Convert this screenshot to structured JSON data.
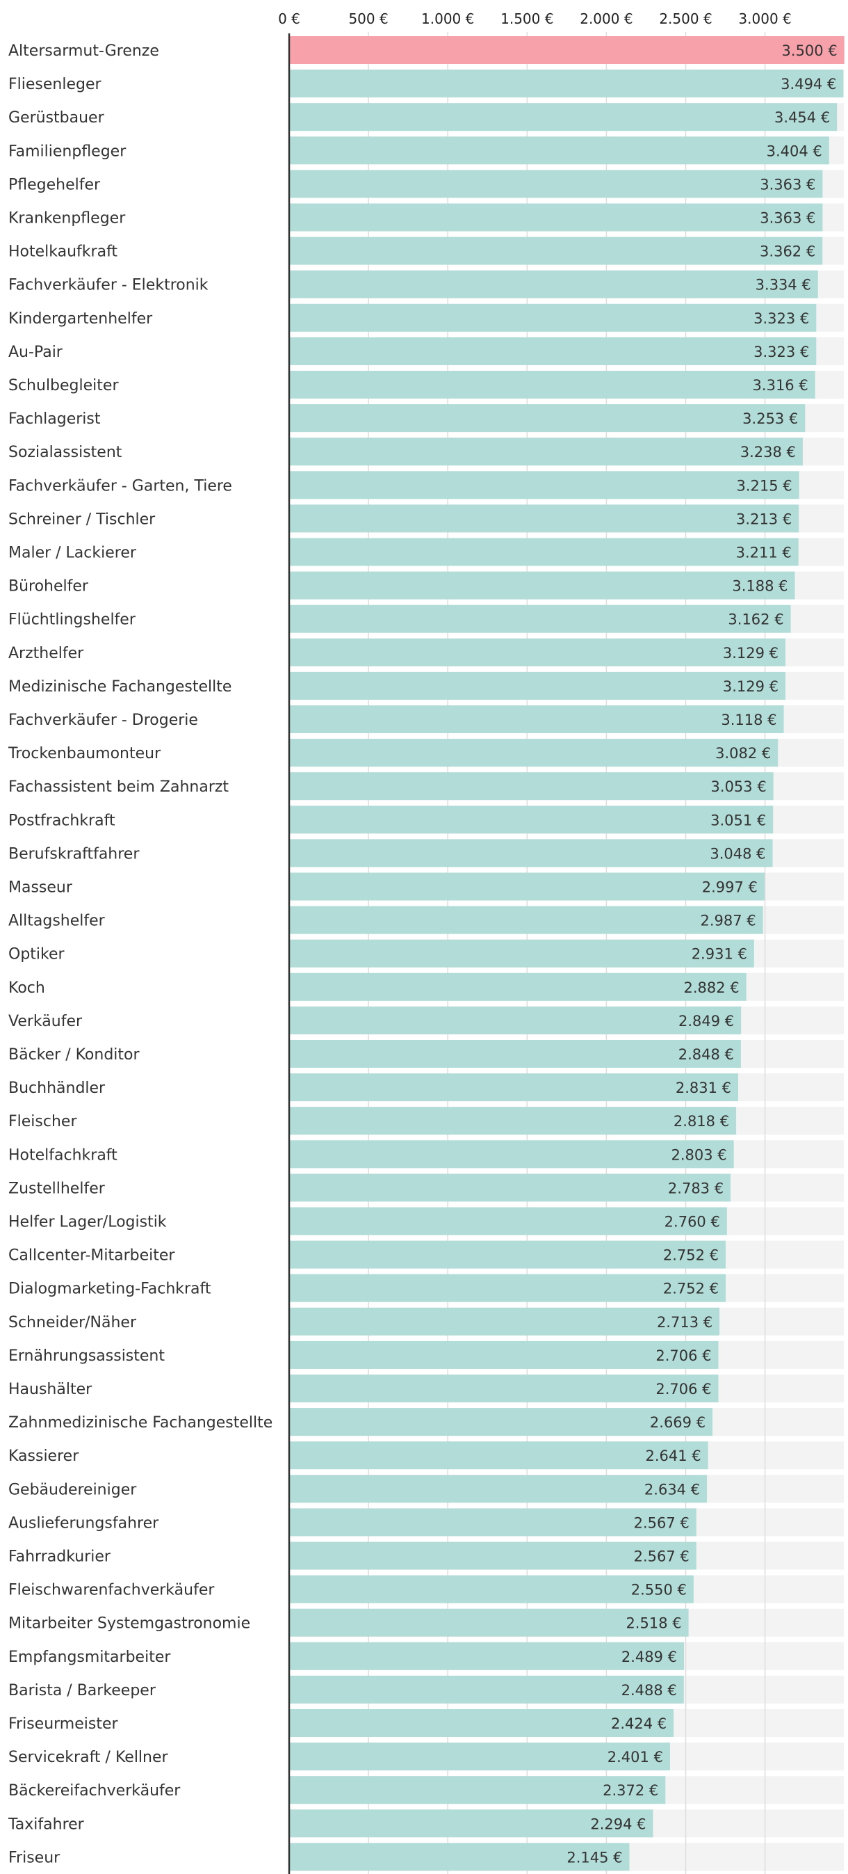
{
  "chart_data": {
    "type": "bar",
    "orientation": "horizontal",
    "title": "",
    "xlabel": "",
    "ylabel": "",
    "xlim": [
      0,
      3500
    ],
    "x_ticks": [
      0,
      500,
      1000,
      1500,
      2000,
      2500,
      3000
    ],
    "x_tick_labels": [
      "0 €",
      "500 €",
      "1.000 €",
      "1.500 €",
      "2.000 €",
      "2.500 €",
      "3.000 €"
    ],
    "grid": true,
    "colors": {
      "highlight": "#f7a1ab",
      "bar": "#b2dcd7",
      "track": "#f3f3f3",
      "grid": "#dddddd",
      "axis": "#333333"
    },
    "bars": [
      {
        "label": "Altersarmut-Grenze",
        "value": 3500,
        "value_label": "3.500 €",
        "highlight": true
      },
      {
        "label": "Fliesenleger",
        "value": 3494,
        "value_label": "3.494 €"
      },
      {
        "label": "Gerüstbauer",
        "value": 3454,
        "value_label": "3.454 €"
      },
      {
        "label": "Familienpfleger",
        "value": 3404,
        "value_label": "3.404 €"
      },
      {
        "label": "Pflegehelfer",
        "value": 3363,
        "value_label": "3.363 €"
      },
      {
        "label": "Krankenpfleger",
        "value": 3363,
        "value_label": "3.363 €"
      },
      {
        "label": "Hotelkaufkraft",
        "value": 3362,
        "value_label": "3.362 €"
      },
      {
        "label": "Fachverkäufer - Elektronik",
        "value": 3334,
        "value_label": "3.334 €"
      },
      {
        "label": "Kindergartenhelfer",
        "value": 3323,
        "value_label": "3.323 €"
      },
      {
        "label": "Au-Pair",
        "value": 3323,
        "value_label": "3.323 €"
      },
      {
        "label": "Schulbegleiter",
        "value": 3316,
        "value_label": "3.316 €"
      },
      {
        "label": "Fachlagerist",
        "value": 3253,
        "value_label": "3.253 €"
      },
      {
        "label": "Sozialassistent",
        "value": 3238,
        "value_label": "3.238 €"
      },
      {
        "label": "Fachverkäufer - Garten, Tiere",
        "value": 3215,
        "value_label": "3.215 €"
      },
      {
        "label": "Schreiner / Tischler",
        "value": 3213,
        "value_label": "3.213 €"
      },
      {
        "label": "Maler / Lackierer",
        "value": 3211,
        "value_label": "3.211 €"
      },
      {
        "label": "Bürohelfer",
        "value": 3188,
        "value_label": "3.188 €"
      },
      {
        "label": "Flüchtlingshelfer",
        "value": 3162,
        "value_label": "3.162 €"
      },
      {
        "label": "Arzthelfer",
        "value": 3129,
        "value_label": "3.129 €"
      },
      {
        "label": "Medizinische Fachangestellte",
        "value": 3129,
        "value_label": "3.129 €"
      },
      {
        "label": "Fachverkäufer - Drogerie",
        "value": 3118,
        "value_label": "3.118 €"
      },
      {
        "label": "Trockenbaumonteur",
        "value": 3082,
        "value_label": "3.082 €"
      },
      {
        "label": "Fachassistent beim Zahnarzt",
        "value": 3053,
        "value_label": "3.053 €"
      },
      {
        "label": "Postfrachkraft",
        "value": 3051,
        "value_label": "3.051 €"
      },
      {
        "label": "Berufskraftfahrer",
        "value": 3048,
        "value_label": "3.048 €"
      },
      {
        "label": "Masseur",
        "value": 2997,
        "value_label": "2.997 €"
      },
      {
        "label": "Alltagshelfer",
        "value": 2987,
        "value_label": "2.987 €"
      },
      {
        "label": "Optiker",
        "value": 2931,
        "value_label": "2.931 €"
      },
      {
        "label": "Koch",
        "value": 2882,
        "value_label": "2.882 €"
      },
      {
        "label": "Verkäufer",
        "value": 2849,
        "value_label": "2.849 €"
      },
      {
        "label": "Bäcker / Konditor",
        "value": 2848,
        "value_label": "2.848 €"
      },
      {
        "label": "Buchhändler",
        "value": 2831,
        "value_label": "2.831 €"
      },
      {
        "label": "Fleischer",
        "value": 2818,
        "value_label": "2.818 €"
      },
      {
        "label": "Hotelfachkraft",
        "value": 2803,
        "value_label": "2.803 €"
      },
      {
        "label": "Zustellhelfer",
        "value": 2783,
        "value_label": "2.783 €"
      },
      {
        "label": "Helfer Lager/Logistik",
        "value": 2760,
        "value_label": "2.760 €"
      },
      {
        "label": "Callcenter-Mitarbeiter",
        "value": 2752,
        "value_label": "2.752 €"
      },
      {
        "label": "Dialogmarketing-Fachkraft",
        "value": 2752,
        "value_label": "2.752 €"
      },
      {
        "label": "Schneider/Näher",
        "value": 2713,
        "value_label": "2.713 €"
      },
      {
        "label": "Ernährungsassistent",
        "value": 2706,
        "value_label": "2.706 €"
      },
      {
        "label": "Haushälter",
        "value": 2706,
        "value_label": "2.706 €"
      },
      {
        "label": "Zahnmedizinische Fachangestellte",
        "value": 2669,
        "value_label": "2.669 €"
      },
      {
        "label": "Kassierer",
        "value": 2641,
        "value_label": "2.641 €"
      },
      {
        "label": "Gebäudereiniger",
        "value": 2634,
        "value_label": "2.634 €"
      },
      {
        "label": "Auslieferungsfahrer",
        "value": 2567,
        "value_label": "2.567 €"
      },
      {
        "label": "Fahrradkurier",
        "value": 2567,
        "value_label": "2.567 €"
      },
      {
        "label": "Fleischwarenfachverkäufer",
        "value": 2550,
        "value_label": "2.550 €"
      },
      {
        "label": "Mitarbeiter Systemgastronomie",
        "value": 2518,
        "value_label": "2.518 €"
      },
      {
        "label": "Empfangsmitarbeiter",
        "value": 2489,
        "value_label": "2.489 €"
      },
      {
        "label": "Barista / Barkeeper",
        "value": 2488,
        "value_label": "2.488 €"
      },
      {
        "label": "Friseurmeister",
        "value": 2424,
        "value_label": "2.424 €"
      },
      {
        "label": "Servicekraft / Kellner",
        "value": 2401,
        "value_label": "2.401 €"
      },
      {
        "label": "Bäckereifachverkäufer",
        "value": 2372,
        "value_label": "2.372 €"
      },
      {
        "label": "Taxifahrer",
        "value": 2294,
        "value_label": "2.294 €"
      },
      {
        "label": "Friseur",
        "value": 2145,
        "value_label": "2.145 €"
      }
    ]
  }
}
